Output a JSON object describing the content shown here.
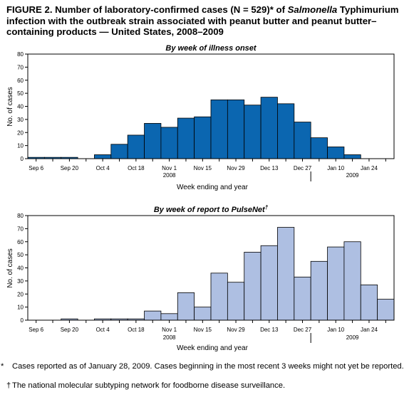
{
  "figure": {
    "title_prefix": "FIGURE 2. Number of laboratory-confirmed cases  (N = 529)* of ",
    "title_italic": "Salmonella",
    "title_suffix": " Typhimurium infection with the outbreak strain associated with peanut butter and peanut butter–containing products — United States, 2008–2009",
    "footnote_star_marker": "*",
    "footnote_star": "Cases reported as of January 28, 2009. Cases beginning in the most recent 3 weeks might not yet be reported.",
    "footnote_dagger_marker": "†",
    "footnote_dagger": "The national molecular subtyping network for foodborne disease surveillance."
  },
  "chart_data": [
    {
      "type": "bar",
      "title": "By week of illness onset",
      "title_mark": "",
      "xlabel": "Week ending and year",
      "ylabel": "No. of cases",
      "ylim": [
        0,
        80
      ],
      "yticks": [
        0,
        10,
        20,
        30,
        40,
        50,
        60,
        70,
        80
      ],
      "bar_color": "#0b66b0",
      "categories": [
        "Sep 6",
        "Sep 13",
        "Sep 20",
        "Sep 27",
        "Oct 4",
        "Oct 11",
        "Oct 18",
        "Oct 25",
        "Nov 1",
        "Nov 8",
        "Nov 15",
        "Nov 22",
        "Nov 29",
        "Dec 6",
        "Dec 13",
        "Dec 20",
        "Dec 27",
        "Jan 3",
        "Jan 10",
        "Jan 17",
        "Jan 24",
        "Jan 31"
      ],
      "tick_labels": [
        "Sep 6",
        "",
        "Sep 20",
        "",
        "Oct 4",
        "",
        "Oct 18",
        "",
        "Nov 1",
        "",
        "Nov 15",
        "",
        "Nov 29",
        "",
        "Dec 13",
        "",
        "Dec 27",
        "",
        "Jan 10",
        "",
        "Jan 24",
        ""
      ],
      "values": [
        1,
        1,
        1,
        0,
        3,
        11,
        18,
        27,
        24,
        31,
        32,
        45,
        45,
        41,
        47,
        42,
        28,
        16,
        9,
        3,
        0,
        0
      ],
      "year_labels": [
        "2008",
        "2009"
      ],
      "year_divider_after": "Dec 27"
    },
    {
      "type": "bar",
      "title": "By week of report to PulseNet",
      "title_mark": "†",
      "xlabel": "Week ending and year",
      "ylabel": "No. of cases",
      "ylim": [
        0,
        80
      ],
      "yticks": [
        0,
        10,
        20,
        30,
        40,
        50,
        60,
        70,
        80
      ],
      "bar_color": "#aebfe2",
      "categories": [
        "Sep 6",
        "Sep 13",
        "Sep 20",
        "Sep 27",
        "Oct 4",
        "Oct 11",
        "Oct 18",
        "Oct 25",
        "Nov 1",
        "Nov 8",
        "Nov 15",
        "Nov 22",
        "Nov 29",
        "Dec 6",
        "Dec 13",
        "Dec 20",
        "Dec 27",
        "Jan 3",
        "Jan 10",
        "Jan 17",
        "Jan 24",
        "Jan 31"
      ],
      "tick_labels": [
        "Sep 6",
        "",
        "Sep 20",
        "",
        "Oct 4",
        "",
        "Oct 18",
        "",
        "Nov 1",
        "",
        "Nov 15",
        "",
        "Nov 29",
        "",
        "Dec 13",
        "",
        "Dec 27",
        "",
        "Jan 10",
        "",
        "Jan 24",
        ""
      ],
      "values": [
        0,
        0,
        1,
        0,
        1,
        1,
        1,
        7,
        5,
        21,
        10,
        36,
        29,
        52,
        57,
        71,
        33,
        45,
        56,
        60,
        27,
        16
      ],
      "year_labels": [
        "2008",
        "2009"
      ],
      "year_divider_after": "Dec 27"
    }
  ]
}
